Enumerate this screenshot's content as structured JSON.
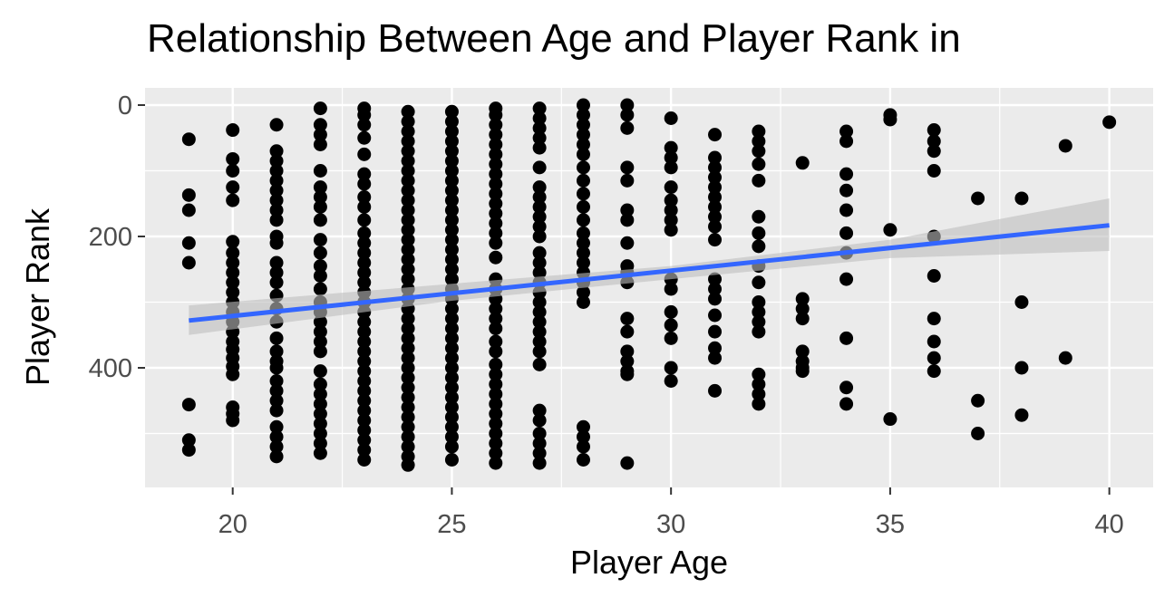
{
  "chart_data": {
    "type": "scatter",
    "title": "Relationship Between Age and Player Rank in",
    "xlabel": "Player Age",
    "ylabel": "Player Rank",
    "xlim": [
      18,
      41
    ],
    "ylim": [
      0,
      560
    ],
    "y_reversed": true,
    "x_ticks": [
      20,
      25,
      30,
      35,
      40
    ],
    "y_ticks": [
      0,
      200,
      400
    ],
    "grid": true,
    "panel_background": "#EBEBEB",
    "point_color": "#000000",
    "trend": {
      "method": "linear",
      "color": "#3366FF",
      "ribbon_color": "#BEBEBE",
      "line": [
        [
          19,
          328
        ],
        [
          40,
          183
        ]
      ],
      "ribbon_upper": [
        [
          19,
          305
        ],
        [
          25,
          272
        ],
        [
          30,
          245
        ],
        [
          35,
          205
        ],
        [
          40,
          142
        ]
      ],
      "ribbon_lower": [
        [
          19,
          350
        ],
        [
          25,
          298
        ],
        [
          30,
          265
        ],
        [
          35,
          233
        ],
        [
          40,
          222
        ]
      ]
    },
    "points_by_age": [
      {
        "age": 19,
        "ranks": [
          52,
          137,
          160,
          210,
          240,
          456,
          510,
          525
        ]
      },
      {
        "age": 20,
        "ranks": [
          38,
          82,
          100,
          125,
          145,
          208,
          225,
          240,
          255,
          270,
          285,
          300,
          315,
          330,
          345,
          360,
          372,
          385,
          398,
          410,
          460,
          470,
          480
        ]
      },
      {
        "age": 21,
        "ranks": [
          30,
          70,
          85,
          100,
          115,
          130,
          145,
          160,
          175,
          200,
          210,
          240,
          255,
          270,
          290,
          310,
          330,
          355,
          375,
          390,
          400,
          420,
          435,
          450,
          465,
          490,
          505,
          520,
          535
        ]
      },
      {
        "age": 22,
        "ranks": [
          5,
          30,
          45,
          60,
          100,
          125,
          140,
          155,
          175,
          205,
          225,
          245,
          260,
          280,
          300,
          315,
          330,
          345,
          360,
          375,
          405,
          425,
          440,
          455,
          470,
          485,
          500,
          515,
          530
        ]
      },
      {
        "age": 23,
        "ranks": [
          5,
          15,
          30,
          50,
          75,
          105,
          120,
          140,
          155,
          175,
          195,
          210,
          225,
          240,
          255,
          270,
          285,
          300,
          315,
          330,
          345,
          360,
          375,
          390,
          405,
          420,
          435,
          450,
          465,
          480,
          495,
          510,
          525,
          540
        ]
      },
      {
        "age": 24,
        "ranks": [
          10,
          25,
          40,
          55,
          70,
          85,
          100,
          115,
          130,
          145,
          160,
          175,
          190,
          205,
          220,
          235,
          250,
          265,
          280,
          295,
          310,
          325,
          340,
          355,
          370,
          385,
          400,
          415,
          430,
          445,
          460,
          475,
          490,
          505,
          520,
          535,
          548
        ]
      },
      {
        "age": 25,
        "ranks": [
          10,
          25,
          40,
          55,
          70,
          85,
          100,
          115,
          130,
          145,
          160,
          175,
          190,
          205,
          220,
          235,
          250,
          265,
          280,
          295,
          310,
          325,
          340,
          355,
          370,
          385,
          400,
          415,
          430,
          445,
          460,
          475,
          490,
          505,
          520,
          540
        ]
      },
      {
        "age": 26,
        "ranks": [
          5,
          15,
          30,
          45,
          60,
          75,
          90,
          105,
          120,
          135,
          150,
          165,
          180,
          195,
          210,
          232,
          265,
          280,
          295,
          310,
          325,
          340,
          360,
          375,
          395,
          410,
          425,
          440,
          455,
          470,
          485,
          500,
          515,
          530,
          545
        ]
      },
      {
        "age": 27,
        "ranks": [
          5,
          20,
          35,
          50,
          65,
          95,
          125,
          140,
          155,
          170,
          185,
          200,
          225,
          240,
          255,
          270,
          285,
          300,
          315,
          330,
          345,
          360,
          375,
          395,
          465,
          480,
          500,
          515,
          530,
          545
        ]
      },
      {
        "age": 28,
        "ranks": [
          0,
          15,
          30,
          45,
          60,
          75,
          95,
          115,
          135,
          155,
          175,
          195,
          210,
          225,
          240,
          255,
          270,
          285,
          300,
          490,
          505,
          520,
          540
        ]
      },
      {
        "age": 29,
        "ranks": [
          0,
          15,
          35,
          95,
          115,
          160,
          175,
          210,
          245,
          255,
          270,
          325,
          345,
          375,
          390,
          405,
          410,
          545
        ]
      },
      {
        "age": 30,
        "ranks": [
          20,
          65,
          80,
          95,
          125,
          145,
          160,
          175,
          190,
          265,
          280,
          315,
          335,
          355,
          400,
          420
        ]
      },
      {
        "age": 31,
        "ranks": [
          45,
          80,
          95,
          110,
          125,
          140,
          155,
          170,
          185,
          205,
          265,
          280,
          295,
          320,
          345,
          370,
          385,
          435
        ]
      },
      {
        "age": 32,
        "ranks": [
          40,
          55,
          70,
          90,
          115,
          170,
          195,
          215,
          245,
          270,
          300,
          315,
          330,
          345,
          410,
          425,
          440,
          455
        ]
      },
      {
        "age": 33,
        "ranks": [
          88,
          295,
          310,
          325,
          375,
          390,
          400,
          405
        ]
      },
      {
        "age": 34,
        "ranks": [
          40,
          55,
          105,
          130,
          160,
          195,
          225,
          265,
          355,
          430,
          455
        ]
      },
      {
        "age": 35,
        "ranks": [
          15,
          22,
          190,
          478
        ]
      },
      {
        "age": 36,
        "ranks": [
          38,
          55,
          70,
          100,
          200,
          260,
          325,
          360,
          385,
          405
        ]
      },
      {
        "age": 37,
        "ranks": [
          142,
          450,
          500
        ]
      },
      {
        "age": 38,
        "ranks": [
          142,
          300,
          400,
          472
        ]
      },
      {
        "age": 39,
        "ranks": [
          62,
          385
        ]
      },
      {
        "age": 40,
        "ranks": [
          26
        ]
      }
    ]
  }
}
